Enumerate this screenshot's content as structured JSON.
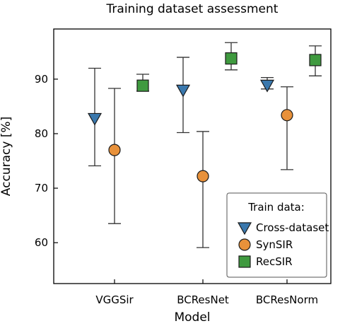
{
  "chart_data": {
    "type": "scatter",
    "title": "Training dataset assessment",
    "xlabel": "Model",
    "ylabel": "Accuracy [%]",
    "categories": [
      "VGGSir",
      "BCResNet",
      "BCResNorm"
    ],
    "ylim": [
      52.5,
      99.2
    ],
    "yticks": [
      60,
      70,
      80,
      90
    ],
    "grid": false,
    "legend": {
      "title": "Train data:",
      "placement": "bottom-right"
    },
    "series": [
      {
        "name": "Cross-dataset",
        "marker": "triangle-down",
        "color": "#3a78ad",
        "values": [
          82.8,
          88.0,
          88.9
        ],
        "err_low": [
          74.1,
          80.2,
          88.2
        ],
        "err_high": [
          92.0,
          94.0,
          90.3
        ]
      },
      {
        "name": "SynSIR",
        "marker": "circle",
        "color": "#e8913a",
        "values": [
          77.0,
          72.2,
          83.4
        ],
        "err_low": [
          63.5,
          59.1,
          73.4
        ],
        "err_high": [
          88.3,
          80.4,
          88.6
        ]
      },
      {
        "name": "RecSIR",
        "marker": "square",
        "color": "#3f9a3f",
        "values": [
          88.8,
          93.8,
          93.5
        ],
        "err_low": [
          87.8,
          91.7,
          90.6
        ],
        "err_high": [
          90.9,
          96.7,
          96.1
        ]
      }
    ]
  }
}
